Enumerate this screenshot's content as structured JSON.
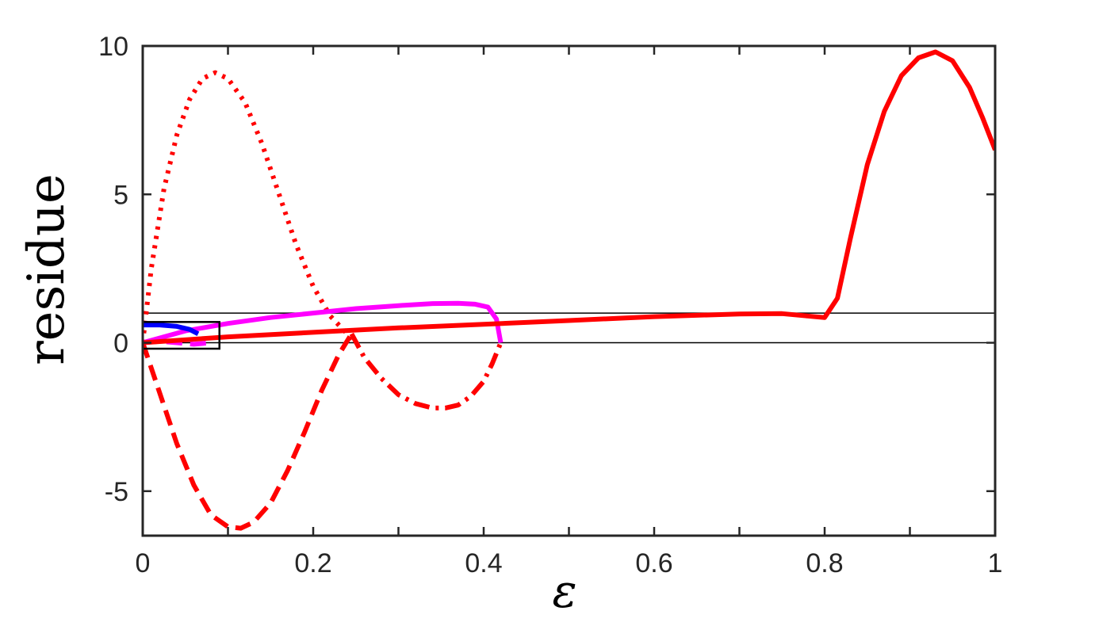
{
  "chart_data": {
    "type": "line",
    "title": "",
    "xlabel": "ε",
    "ylabel": "residue",
    "xlim": [
      0,
      1
    ],
    "ylim": [
      -6.5,
      10
    ],
    "xticks": [
      0,
      0.2,
      0.4,
      0.6,
      0.8,
      1
    ],
    "xtick_labels": [
      "0",
      "0.2",
      "0.4",
      "0.6",
      "0.8",
      "1"
    ],
    "yticks": [
      -5,
      0,
      5,
      10
    ],
    "ytick_labels": [
      "-5",
      "0",
      "5",
      "10"
    ],
    "grid": false,
    "legend": "none",
    "reference_lines": [
      {
        "y": 0,
        "color": "#000000"
      },
      {
        "y": 1,
        "color": "#000000"
      }
    ],
    "inset_box": {
      "x": [
        0,
        0.09
      ],
      "y": [
        -0.2,
        0.7
      ]
    },
    "series": [
      {
        "color": "#ff0000",
        "style": "dotted",
        "x": [
          0,
          0.01,
          0.025,
          0.04,
          0.055,
          0.07,
          0.085,
          0.1,
          0.12,
          0.14,
          0.16,
          0.18,
          0.2,
          0.22,
          0.24,
          0.25
        ],
        "y": [
          0,
          2.5,
          5.2,
          7.0,
          8.2,
          8.9,
          9.1,
          8.9,
          8.1,
          6.7,
          5.0,
          3.3,
          1.9,
          0.9,
          0.3,
          0.0
        ]
      },
      {
        "color": "#ff0000",
        "style": "dashed",
        "x": [
          0,
          0.02,
          0.04,
          0.06,
          0.08,
          0.1,
          0.115,
          0.13,
          0.15,
          0.17,
          0.19,
          0.21,
          0.23,
          0.245
        ],
        "y": [
          0,
          -1.7,
          -3.4,
          -4.8,
          -5.8,
          -6.2,
          -6.25,
          -6.05,
          -5.4,
          -4.3,
          -3.0,
          -1.6,
          -0.4,
          0.3
        ]
      },
      {
        "color": "#ff0000",
        "style": "dashdot",
        "x": [
          0.245,
          0.26,
          0.28,
          0.3,
          0.32,
          0.34,
          0.355,
          0.37,
          0.385,
          0.4,
          0.41,
          0.42
        ],
        "y": [
          0.3,
          -0.5,
          -1.2,
          -1.75,
          -2.05,
          -2.2,
          -2.2,
          -2.1,
          -1.8,
          -1.3,
          -0.7,
          0.0
        ]
      },
      {
        "color": "#ff00ff",
        "style": "solid",
        "x": [
          0,
          0.05,
          0.1,
          0.15,
          0.2,
          0.25,
          0.3,
          0.34,
          0.37,
          0.39,
          0.405,
          0.415,
          0.42
        ],
        "y": [
          0,
          0.4,
          0.65,
          0.85,
          1.0,
          1.15,
          1.25,
          1.32,
          1.33,
          1.3,
          1.2,
          0.8,
          0.0
        ]
      },
      {
        "color": "#ff00ff",
        "style": "dashed",
        "x": [
          0,
          0.02,
          0.04,
          0.06,
          0.08
        ],
        "y": [
          0,
          0.05,
          0.0,
          -0.05,
          0.0
        ]
      },
      {
        "color": "#0000ff",
        "style": "solid",
        "x": [
          0,
          0.02,
          0.04,
          0.055,
          0.065
        ],
        "y": [
          0.6,
          0.6,
          0.55,
          0.45,
          0.3
        ]
      },
      {
        "color": "#ff0000",
        "style": "solid",
        "x": [
          0,
          0.1,
          0.2,
          0.3,
          0.4,
          0.5,
          0.6,
          0.7,
          0.75,
          0.78,
          0.8,
          0.815,
          0.83,
          0.85,
          0.87,
          0.89,
          0.91,
          0.93,
          0.95,
          0.97,
          0.985,
          1.0
        ],
        "y": [
          0,
          0.2,
          0.35,
          0.5,
          0.62,
          0.75,
          0.88,
          0.97,
          0.98,
          0.9,
          0.85,
          1.5,
          3.5,
          6.0,
          7.8,
          9.0,
          9.6,
          9.8,
          9.5,
          8.6,
          7.6,
          6.5
        ]
      }
    ]
  }
}
